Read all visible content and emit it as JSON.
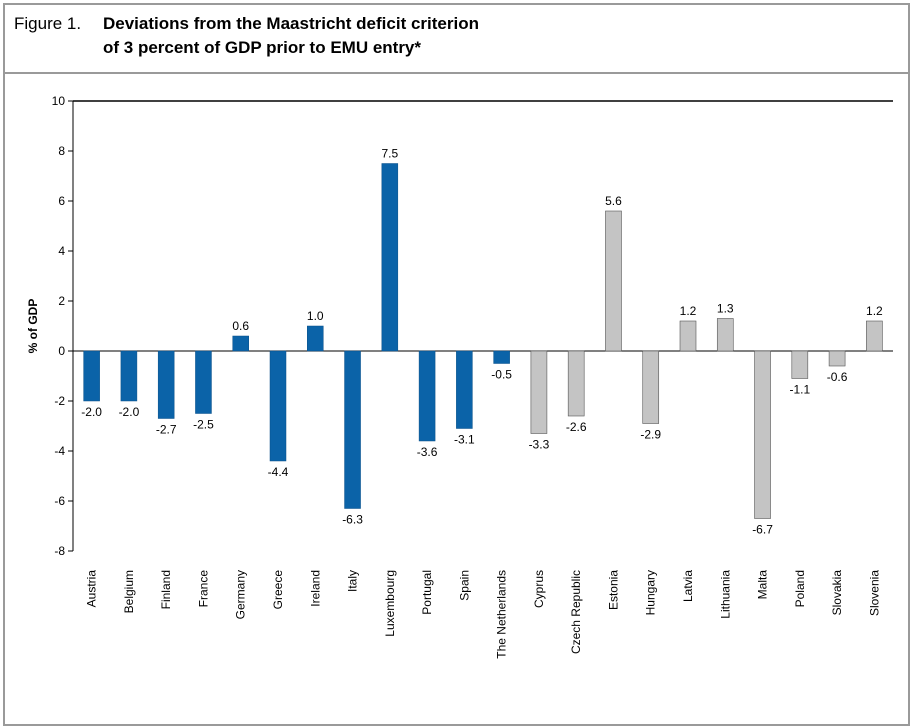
{
  "figure": {
    "label": "Figure 1.",
    "title_line1": "Deviations from the Maastricht deficit criterion",
    "title_line2": "of 3 percent of GDP prior to EMU entry*"
  },
  "chart_data": {
    "type": "bar",
    "title": "Deviations from the Maastricht deficit criterion of 3 percent of GDP prior to EMU entry*",
    "xlabel": "",
    "ylabel": "% of GDP",
    "ylim": [
      -8,
      10
    ],
    "yticks": [
      -8,
      -6,
      -4,
      -2,
      0,
      2,
      4,
      6,
      8,
      10
    ],
    "grid": false,
    "categories": [
      "Austria",
      "Belgium",
      "Finland",
      "France",
      "Germany",
      "Greece",
      "Ireland",
      "Italy",
      "Luxembourg",
      "Portugal",
      "Spain",
      "The Netherlands",
      "Cyprus",
      "Czech Republic",
      "Estonia",
      "Hungary",
      "Latvia",
      "Lithuania",
      "Malta",
      "Poland",
      "Slovakia",
      "Slovenia"
    ],
    "values": [
      -2.0,
      -2.0,
      -2.7,
      -2.5,
      0.6,
      -4.4,
      1.0,
      -6.3,
      7.5,
      -3.6,
      -3.1,
      -0.5,
      -3.3,
      -2.6,
      5.6,
      -2.9,
      1.2,
      1.3,
      -6.7,
      -1.1,
      -0.6,
      1.2
    ],
    "labels": [
      "-2.0",
      "-2.0",
      "-2.7",
      "-2.5",
      "0.6",
      "-4.4",
      "1.0",
      "-6.3",
      "7.5",
      "-3.6",
      "-3.1",
      "-0.5",
      "-3.3",
      "-2.6",
      "5.6",
      "-2.9",
      "1.2",
      "1.3",
      "-6.7",
      "-1.1",
      "-0.6",
      "1.2"
    ],
    "groups": [
      "blue",
      "blue",
      "blue",
      "blue",
      "blue",
      "blue",
      "blue",
      "blue",
      "blue",
      "blue",
      "blue",
      "blue",
      "grey",
      "grey",
      "grey",
      "grey",
      "grey",
      "grey",
      "grey",
      "grey",
      "grey",
      "grey"
    ],
    "colors": {
      "blue": "#0b63a8",
      "grey": "#c4c4c4",
      "axis": "#000000"
    }
  }
}
